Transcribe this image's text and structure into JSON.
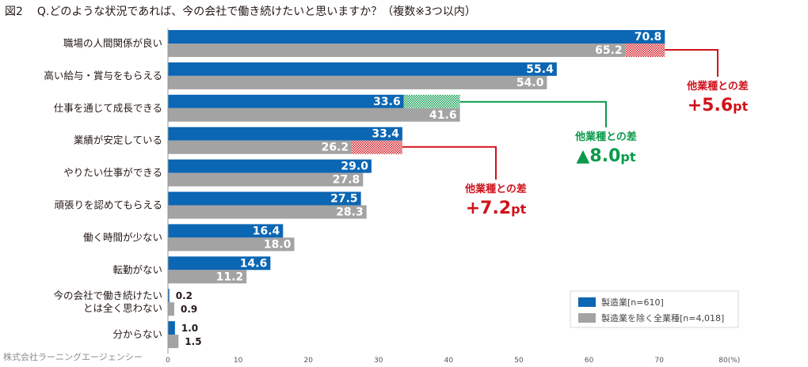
{
  "title": {
    "figure": "図2",
    "question": "Q.どのような状況であれば、今の会社で働き続けたいと思いますか？（複数※3つ以内）"
  },
  "credit": "株式会社ラーニングエージェンシー",
  "chart_data": {
    "type": "bar",
    "orientation": "horizontal",
    "categories": [
      "職場の人間関係が良い",
      "高い給与・賞与をもらえる",
      "仕事を通じて成長できる",
      "業績が安定している",
      "やりたい仕事ができる",
      "頑張りを認めてもらえる",
      "働く時間が少ない",
      "転勤がない",
      "今の会社で働き続けたい\nとは全く思わない",
      "分からない"
    ],
    "series": [
      {
        "name": "製造業[n=610]",
        "color": "#0b66b3",
        "values": [
          70.8,
          55.4,
          33.6,
          33.4,
          29.0,
          27.5,
          16.4,
          14.6,
          0.2,
          1.0
        ],
        "labels": [
          "70.8",
          "55.4",
          "33.6",
          "33.4",
          "29.0",
          "27.5",
          "16.4",
          "14.6",
          "0.2",
          "1.0"
        ]
      },
      {
        "name": "製造業を除く全業種[n=4,018]",
        "color": "#a3a3a3",
        "values": [
          65.2,
          54.0,
          41.6,
          26.2,
          27.8,
          28.3,
          18.0,
          11.2,
          0.9,
          1.5
        ],
        "labels": [
          "65.2",
          "54.0",
          "41.6",
          "26.2",
          "27.8",
          "28.3",
          "18.0",
          "11.2",
          "0.9",
          "1.5"
        ]
      }
    ],
    "xlim": [
      0,
      80
    ],
    "xticks": [
      0,
      10,
      20,
      30,
      40,
      50,
      60,
      70,
      80
    ],
    "xtick_labels": [
      "0",
      "10",
      "20",
      "30",
      "40",
      "50",
      "60",
      "70",
      "80(%)"
    ],
    "legend_position": "bottom-right",
    "annotations": [
      {
        "category_index": 0,
        "header": "他業種との差",
        "value": "+5.6",
        "unit": "pt",
        "color": "#d0121b",
        "direction": "plus"
      },
      {
        "category_index": 2,
        "header": "他業種との差",
        "value": "▲8.0",
        "unit": "pt",
        "color": "#0a9a4a",
        "direction": "minus"
      },
      {
        "category_index": 3,
        "header": "他業種との差",
        "value": "+7.2",
        "unit": "pt",
        "color": "#d0121b",
        "direction": "plus"
      }
    ]
  }
}
